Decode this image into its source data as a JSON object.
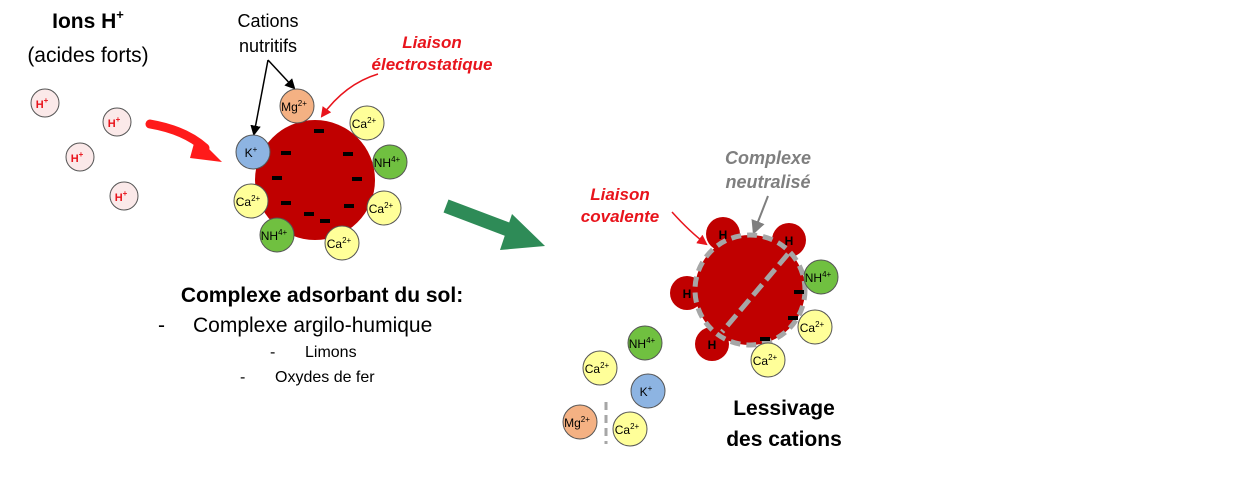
{
  "header": {
    "ions_h_title": "Ions H",
    "ions_h_sup": "+",
    "ions_h_subtitle": "(acides forts)"
  },
  "labels": {
    "cations_line1": "Cations",
    "cations_line2": "nutritifs",
    "liaison_elec_line1": "Liaison",
    "liaison_elec_line2": "électrostatique",
    "complexe_neutralise_line1": "Complexe",
    "complexe_neutralise_line2": "neutralisé",
    "liaison_cov_line1": "Liaison",
    "liaison_cov_line2": "covalente",
    "lessivage_line1": "Lessivage",
    "lessivage_line2": "des cations"
  },
  "legend": {
    "title": "Complexe adsorbant du sol:",
    "item1": "Complexe argilo-humique",
    "item2": "Limons",
    "item3": "Oxydes de fer",
    "dash": "-"
  },
  "ions": {
    "h_plus": "H",
    "h_sup": "+",
    "h": "H",
    "k_plus": "K",
    "mg": "Mg",
    "mg_sup": "2+",
    "ca": "Ca",
    "ca_sup": "2+",
    "nh4": "NH",
    "nh4_sup": "4+",
    "minus": "−"
  },
  "colors": {
    "red_text": "#e8141c",
    "gray_text": "#7f7f7f",
    "complex_fill": "#c00000",
    "h_ion_fill": "#fbe9e9",
    "ca_fill": "#ffff99",
    "nh4_fill": "#70c040",
    "k_fill": "#8db4e2",
    "mg_fill": "#f4b183",
    "green_arrow": "#2e8b57"
  }
}
